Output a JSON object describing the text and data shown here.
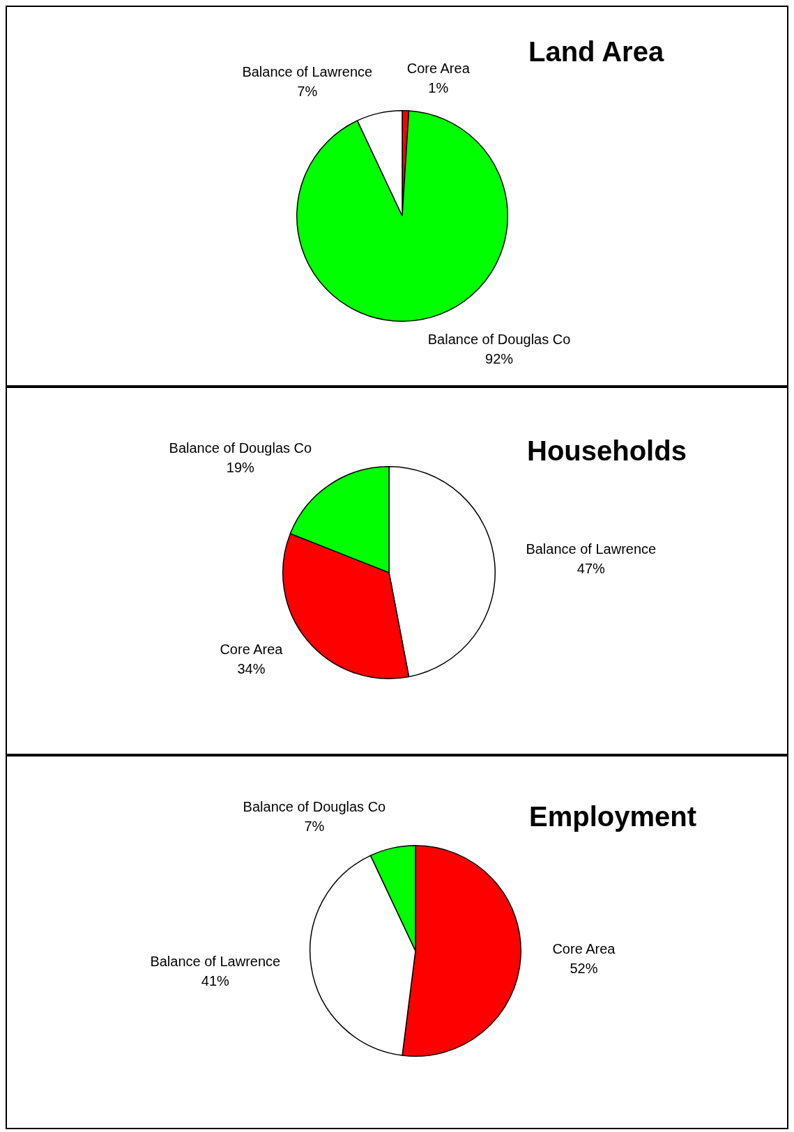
{
  "chart_data": [
    {
      "type": "pie",
      "title": "Land Area",
      "categories": [
        "Core Area",
        "Balance of Douglas Co",
        "Balance of Lawrence"
      ],
      "values": [
        1,
        92,
        7
      ],
      "value_labels": [
        "1%",
        "92%",
        "7%"
      ],
      "colors": [
        "#ff0000",
        "#00ff00",
        "#ffffff"
      ],
      "legend": false
    },
    {
      "type": "pie",
      "title": "Households",
      "categories": [
        "Balance of Lawrence",
        "Core Area",
        "Balance of Douglas Co"
      ],
      "values": [
        47,
        34,
        19
      ],
      "value_labels": [
        "47%",
        "34%",
        "19%"
      ],
      "colors": [
        "#ffffff",
        "#ff0000",
        "#00ff00"
      ],
      "legend": false
    },
    {
      "type": "pie",
      "title": "Employment",
      "categories": [
        "Core Area",
        "Balance of Lawrence",
        "Balance of Douglas Co"
      ],
      "values": [
        52,
        41,
        7
      ],
      "value_labels": [
        "52%",
        "41%",
        "7%"
      ],
      "colors": [
        "#ff0000",
        "#ffffff",
        "#00ff00"
      ],
      "legend": false
    }
  ]
}
